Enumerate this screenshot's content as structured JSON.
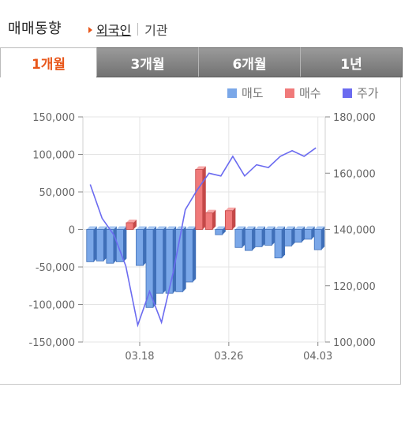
{
  "header": {
    "title": "매매동향",
    "subnav": [
      {
        "label": "외국인",
        "active": true
      },
      {
        "label": "기관",
        "active": false
      }
    ]
  },
  "tabs": [
    {
      "label": "1개월",
      "active": true
    },
    {
      "label": "3개월",
      "active": false
    },
    {
      "label": "6개월",
      "active": false
    },
    {
      "label": "1년",
      "active": false
    }
  ],
  "colors": {
    "accent": "#e8561a",
    "sell": "#7aa7e8",
    "buy": "#f07a7a",
    "price": "#6b6bf0"
  },
  "legend": [
    {
      "label": "매도",
      "color": "#7aa7e8"
    },
    {
      "label": "매수",
      "color": "#f07a7a"
    },
    {
      "label": "주가",
      "color": "#6b6bf0"
    }
  ],
  "chart_data": {
    "type": "bar",
    "legend_position": "top-right",
    "grid": true,
    "left_axis": {
      "range": [
        -150000,
        150000
      ],
      "ticks": [
        150000,
        100000,
        50000,
        0,
        -50000,
        -100000,
        -150000
      ],
      "tick_labels": [
        "150,000",
        "100,000",
        "50,000",
        "0",
        "-50,000",
        "-100,000",
        "-150,000"
      ]
    },
    "right_axis": {
      "range": [
        100000,
        180000
      ],
      "ticks": [
        180000,
        160000,
        140000,
        120000,
        100000
      ],
      "tick_labels": [
        "180,000",
        "160,000",
        "140,000",
        "120,000",
        "100,000"
      ]
    },
    "x_tick_labels": [
      {
        "label": "03.18",
        "index": 5
      },
      {
        "label": "03.26",
        "index": 14
      },
      {
        "label": "04.03",
        "index": 23
      }
    ],
    "series": [
      {
        "name": "매수",
        "values": [
          -43000,
          -42000,
          -45000,
          -43000,
          9000,
          -48000,
          -104000,
          -85000,
          -85000,
          -83000,
          -70000,
          80000,
          22000,
          -7000,
          25000,
          -24000,
          -28000,
          -23000,
          -21000,
          -38000,
          -22000,
          -17000,
          -13000,
          -27000
        ]
      },
      {
        "name": "주가",
        "values": [
          156000,
          144000,
          138000,
          127000,
          106000,
          118000,
          107000,
          125000,
          147000,
          154000,
          160000,
          159000,
          166000,
          159000,
          163000,
          162000,
          166000,
          168000,
          166000,
          169000
        ]
      }
    ],
    "price_x_positions": [
      0,
      1.2,
      2.4,
      3.6,
      4.8,
      6.0,
      7.2,
      8.4,
      9.6,
      10.8,
      12.0,
      13.2,
      14.4,
      15.6,
      16.8,
      18.0,
      19.2,
      20.4,
      21.6,
      22.8
    ]
  }
}
